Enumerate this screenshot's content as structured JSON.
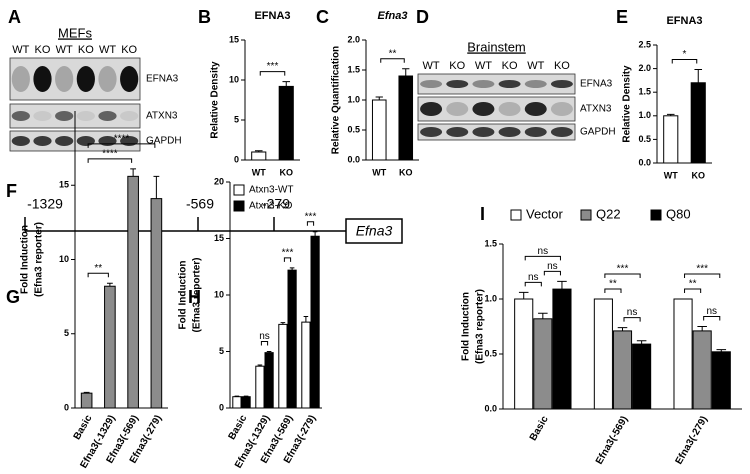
{
  "panel_letters": [
    "A",
    "B",
    "C",
    "D",
    "E",
    "F",
    "G",
    "H",
    "I"
  ],
  "blots": [
    {
      "title": "MEFs",
      "lanes": [
        "WT",
        "KO",
        "WT",
        "KO",
        "WT",
        "KO"
      ],
      "rows": [
        "EFNA3",
        "ATXN3",
        "GAPDH"
      ]
    },
    {
      "title": "Brainstem",
      "lanes": [
        "WT",
        "KO",
        "WT",
        "KO",
        "WT",
        "KO"
      ],
      "rows": [
        "EFNA3",
        "ATXN3",
        "GAPDH"
      ]
    }
  ],
  "promoter_diagram": {
    "positions": [
      "-1329",
      "-569",
      "-279"
    ],
    "gene": "Efna3"
  },
  "chart_data": [
    {
      "type": "bar",
      "title": "EFNA3",
      "ylabel": [
        "Relative Density"
      ],
      "categories": [
        "WT",
        "KO"
      ],
      "series": [
        {
          "values": [
            1.0,
            9.2
          ],
          "errors": [
            0.15,
            0.6
          ],
          "colors": [
            "#ffffff",
            "#000000"
          ]
        }
      ],
      "ylim": [
        0,
        15
      ],
      "yticks": [
        0,
        5,
        10,
        15
      ],
      "comparisons": [
        {
          "from": "WT",
          "to": "KO",
          "label": "***"
        }
      ]
    },
    {
      "type": "bar",
      "title": "Efna3",
      "title_italic": true,
      "ylabel": [
        "Relative Quantification"
      ],
      "categories": [
        "WT",
        "KO"
      ],
      "series": [
        {
          "values": [
            1.0,
            1.4
          ],
          "errors": [
            0.05,
            0.12
          ],
          "colors": [
            "#ffffff",
            "#000000"
          ]
        }
      ],
      "ylim": [
        0,
        2
      ],
      "yticks": [
        {
          "value": 0,
          "label": "0.0"
        },
        {
          "value": 0.5,
          "label": "0.5"
        },
        {
          "value": 1,
          "label": "1.0"
        },
        {
          "value": 1.5,
          "label": "1.5"
        },
        {
          "value": 2,
          "label": "2.0"
        }
      ],
      "comparisons": [
        {
          "from": "WT",
          "to": "KO",
          "label": "**"
        }
      ]
    },
    {
      "type": "bar",
      "title": "EFNA3",
      "ylabel": [
        "Relative Density"
      ],
      "categories": [
        "WT",
        "KO"
      ],
      "series": [
        {
          "values": [
            1.0,
            1.7
          ],
          "errors": [
            0.03,
            0.28
          ],
          "colors": [
            "#ffffff",
            "#000000"
          ]
        }
      ],
      "ylim": [
        0,
        2.5
      ],
      "yticks": [
        {
          "value": 0,
          "label": "0.0"
        },
        {
          "value": 0.5,
          "label": "0.5"
        },
        {
          "value": 1,
          "label": "1.0"
        },
        {
          "value": 1.5,
          "label": "1.5"
        },
        {
          "value": 2,
          "label": "2.0"
        },
        {
          "value": 2.5,
          "label": "2.5"
        }
      ],
      "comparisons": [
        {
          "from": "WT",
          "to": "KO",
          "label": "*"
        }
      ]
    },
    {
      "type": "bar",
      "ylabel": [
        "Fold Induction",
        "(Efna3 reporter)"
      ],
      "categories": [
        "Basic",
        "Efna3(-1329)",
        "Efna3(-569)",
        "Efna3(-279)"
      ],
      "series": [
        {
          "values": [
            1.0,
            8.2,
            15.6,
            14.1
          ],
          "errors": [
            0.05,
            0.2,
            0.5,
            1.5
          ],
          "color": "#8c8c8c"
        }
      ],
      "ylim": [
        0,
        20
      ],
      "yticks": [
        0,
        5,
        10,
        15
      ],
      "comparisons": [
        {
          "from": "Basic",
          "to": "Efna3(-1329)",
          "label": "**"
        },
        {
          "from": "Basic",
          "to": "Efna3(-569)",
          "label": "****"
        },
        {
          "from": "Basic",
          "to": "Efna3(-279)",
          "label": "****"
        }
      ]
    },
    {
      "type": "bar",
      "ylabel": [
        "Fold Induction",
        "(Efna3 reporter)"
      ],
      "categories": [
        "Basic",
        "Efna3(-1329)",
        "Efna3(-569)",
        "Efna3(-279)"
      ],
      "series": [
        {
          "name": "Atxn3-WT",
          "color": "#ffffff",
          "values": [
            1.0,
            3.7,
            7.4,
            7.6
          ],
          "errors": [
            0.05,
            0.1,
            0.15,
            0.5
          ]
        },
        {
          "name": "Atxn3-KO",
          "color": "#000000",
          "values": [
            1.0,
            4.9,
            12.2,
            15.2
          ],
          "errors": [
            0.05,
            0.1,
            0.2,
            0.4
          ]
        }
      ],
      "ylim": [
        0,
        20
      ],
      "yticks": [
        0,
        5,
        10,
        15,
        20
      ],
      "legend": "upper left",
      "comparisons": [
        {
          "category": "Efna3(-1329)",
          "from": "Atxn3-WT",
          "to": "Atxn3-KO",
          "label": "ns"
        },
        {
          "category": "Efna3(-569)",
          "from": "Atxn3-WT",
          "to": "Atxn3-KO",
          "label": "***"
        },
        {
          "category": "Efna3(-279)",
          "from": "Atxn3-WT",
          "to": "Atxn3-KO",
          "label": "***"
        }
      ]
    },
    {
      "type": "bar",
      "ylabel": [
        "Fold Induction",
        "(Efna3 reporter)"
      ],
      "categories": [
        "Basic",
        "Efna3(-569)",
        "Efna3(-279)"
      ],
      "series": [
        {
          "name": "Vector",
          "color": "#ffffff",
          "values": [
            1.0,
            1.0,
            1.0
          ],
          "errors": [
            0.06,
            0,
            0
          ]
        },
        {
          "name": "Q22",
          "color": "#8c8c8c",
          "values": [
            0.82,
            0.71,
            0.71
          ],
          "errors": [
            0.05,
            0.03,
            0.04
          ]
        },
        {
          "name": "Q80",
          "color": "#000000",
          "values": [
            1.09,
            0.59,
            0.52
          ],
          "errors": [
            0.07,
            0.03,
            0.02
          ]
        }
      ],
      "ylim": [
        0,
        1.5
      ],
      "yticks": [
        {
          "value": 0,
          "label": "0.0"
        },
        {
          "value": 0.5,
          "label": "0.5"
        },
        {
          "value": 1,
          "label": "1.0"
        },
        {
          "value": 1.5,
          "label": "1.5"
        }
      ],
      "legend": "top",
      "comparisons": [
        {
          "category": "Basic",
          "from": "Vector",
          "to": "Q22",
          "label": "ns"
        },
        {
          "category": "Basic",
          "from": "Q22",
          "to": "Q80",
          "label": "ns"
        },
        {
          "category": "Basic",
          "from": "Vector",
          "to": "Q80",
          "label": "ns"
        },
        {
          "category": "Efna3(-569)",
          "from": "Q22",
          "to": "Q80",
          "label": "ns"
        },
        {
          "category": "Efna3(-569)",
          "from": "Vector",
          "to": "Q22",
          "label": "**"
        },
        {
          "category": "Efna3(-569)",
          "from": "Vector",
          "to": "Q80",
          "label": "***"
        },
        {
          "category": "Efna3(-279)",
          "from": "Q22",
          "to": "Q80",
          "label": "ns"
        },
        {
          "category": "Efna3(-279)",
          "from": "Vector",
          "to": "Q22",
          "label": "**"
        },
        {
          "category": "Efna3(-279)",
          "from": "Vector",
          "to": "Q80",
          "label": "***"
        }
      ]
    }
  ]
}
